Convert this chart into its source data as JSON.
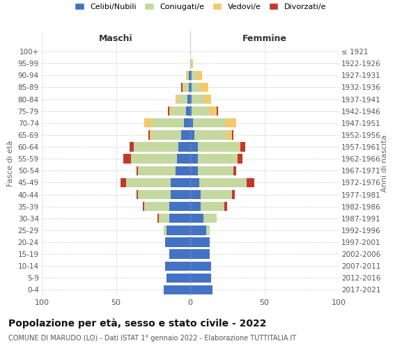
{
  "age_groups": [
    "0-4",
    "5-9",
    "10-14",
    "15-19",
    "20-24",
    "25-29",
    "30-34",
    "35-39",
    "40-44",
    "45-49",
    "50-54",
    "55-59",
    "60-64",
    "65-69",
    "70-74",
    "75-79",
    "80-84",
    "85-89",
    "90-94",
    "95-99",
    "100+"
  ],
  "birth_years": [
    "2017-2021",
    "2012-2016",
    "2007-2011",
    "2002-2006",
    "1997-2001",
    "1992-1996",
    "1987-1991",
    "1982-1986",
    "1977-1981",
    "1972-1976",
    "1967-1971",
    "1962-1966",
    "1957-1961",
    "1952-1956",
    "1947-1951",
    "1942-1946",
    "1937-1941",
    "1932-1936",
    "1927-1931",
    "1922-1926",
    "≤ 1921"
  ],
  "colors": {
    "celibe": "#4472c4",
    "coniugato": "#c5d8a0",
    "vedovo": "#f4c96e",
    "divorziato": "#c0392b"
  },
  "maschi": {
    "celibe": [
      18,
      16,
      17,
      14,
      17,
      16,
      14,
      14,
      13,
      13,
      10,
      9,
      8,
      6,
      4,
      3,
      2,
      1,
      1,
      0,
      0
    ],
    "coniugato": [
      0,
      0,
      0,
      0,
      0,
      2,
      7,
      17,
      22,
      30,
      25,
      31,
      30,
      20,
      22,
      10,
      6,
      3,
      1,
      0,
      0
    ],
    "vedovo": [
      0,
      0,
      0,
      0,
      0,
      0,
      0,
      0,
      0,
      0,
      0,
      0,
      0,
      1,
      5,
      1,
      2,
      1,
      1,
      0,
      0
    ],
    "divorziato": [
      0,
      0,
      0,
      0,
      0,
      0,
      1,
      1,
      1,
      4,
      1,
      5,
      3,
      1,
      0,
      1,
      0,
      1,
      0,
      0,
      0
    ]
  },
  "femmine": {
    "nubile": [
      15,
      14,
      14,
      13,
      13,
      11,
      9,
      7,
      7,
      6,
      5,
      5,
      5,
      3,
      2,
      1,
      1,
      1,
      1,
      0,
      0
    ],
    "coniugata": [
      0,
      0,
      0,
      0,
      0,
      2,
      9,
      16,
      21,
      32,
      24,
      26,
      28,
      22,
      22,
      12,
      8,
      5,
      3,
      1,
      0
    ],
    "vedova": [
      0,
      0,
      0,
      0,
      0,
      0,
      0,
      0,
      0,
      0,
      0,
      1,
      1,
      3,
      7,
      5,
      5,
      6,
      4,
      1,
      0
    ],
    "divorziata": [
      0,
      0,
      0,
      0,
      0,
      0,
      0,
      2,
      2,
      5,
      2,
      3,
      3,
      1,
      0,
      1,
      0,
      0,
      0,
      0,
      0
    ]
  },
  "xlim": 100,
  "title": "Popolazione per età, sesso e stato civile - 2022",
  "subtitle": "COMUNE DI MARUDO (LO) - Dati ISTAT 1° gennaio 2022 - Elaborazione TUTTITALIA.IT",
  "ylabel_left": "Fasce di età",
  "ylabel_right": "Anni di nascita",
  "xlabel_left": "Maschi",
  "xlabel_right": "Femmine",
  "background_color": "#ffffff",
  "grid_color": "#cccccc"
}
